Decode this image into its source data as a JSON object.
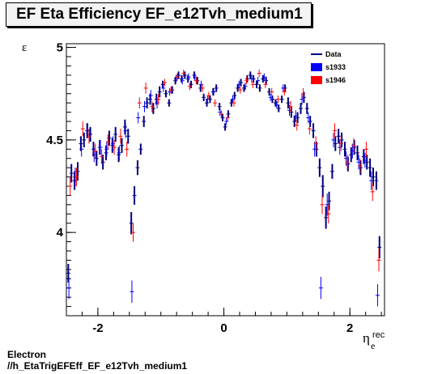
{
  "title": "EF Eta Efficiency EF_e12Tvh_medium1",
  "footer": {
    "line1": "Electron",
    "line2": "//h_EtaTrigEFEff_EF_e12Tvh_medium1"
  },
  "chart_data": {
    "type": "scatter",
    "title": "EF Eta Efficiency EF_e12Tvh_medium1",
    "ylabel": "ε",
    "xlabel": "η",
    "xlabel_sup": "rec",
    "xlabel_sub": "e",
    "xlim": [
      -2.5,
      2.55
    ],
    "ylim": [
      3.55,
      5.02
    ],
    "xticks": [
      -2,
      0,
      2
    ],
    "yticks": [
      4,
      4.5,
      5
    ],
    "grid": false,
    "legend_position": "top-right",
    "legend": [
      {
        "label": "Data",
        "style": "line",
        "color": "#00007f"
      },
      {
        "label": "s1933",
        "style": "box",
        "color": "#0000ff"
      },
      {
        "label": "s1946",
        "style": "box",
        "color": "#ff0000"
      }
    ],
    "series": [
      {
        "name": "Data",
        "color": "#00007f",
        "x": [
          -2.47,
          -2.42,
          -2.37,
          -2.32,
          -2.27,
          -2.22,
          -2.17,
          -2.12,
          -2.07,
          -2.02,
          -1.97,
          -1.92,
          -1.87,
          -1.82,
          -1.77,
          -1.72,
          -1.67,
          -1.62,
          -1.57,
          -1.52,
          -1.47,
          -1.42,
          -1.37,
          -1.32,
          -1.27,
          -1.22,
          -1.17,
          -1.12,
          -1.07,
          -1.02,
          -0.97,
          -0.92,
          -0.87,
          -0.82,
          -0.77,
          -0.72,
          -0.67,
          -0.62,
          -0.57,
          -0.52,
          -0.47,
          -0.42,
          -0.37,
          -0.32,
          -0.27,
          -0.22,
          -0.17,
          -0.12,
          -0.07,
          -0.02,
          0.02,
          0.07,
          0.12,
          0.17,
          0.22,
          0.27,
          0.32,
          0.37,
          0.42,
          0.47,
          0.52,
          0.57,
          0.62,
          0.67,
          0.72,
          0.77,
          0.82,
          0.87,
          0.92,
          0.97,
          1.02,
          1.07,
          1.12,
          1.17,
          1.22,
          1.27,
          1.32,
          1.37,
          1.42,
          1.47,
          1.52,
          1.57,
          1.62,
          1.67,
          1.72,
          1.77,
          1.82,
          1.87,
          1.92,
          1.97,
          2.02,
          2.07,
          2.12,
          2.17,
          2.22,
          2.27,
          2.32,
          2.37,
          2.42,
          2.47
        ],
        "y": [
          3.78,
          4.32,
          4.28,
          4.33,
          4.48,
          4.5,
          4.55,
          4.53,
          4.45,
          4.4,
          4.46,
          4.38,
          4.43,
          4.51,
          4.47,
          4.53,
          4.42,
          4.47,
          4.57,
          4.52,
          4.05,
          4.2,
          4.35,
          4.45,
          4.6,
          4.7,
          4.72,
          4.67,
          4.72,
          4.76,
          4.8,
          4.75,
          4.7,
          4.77,
          4.82,
          4.85,
          4.83,
          4.85,
          4.83,
          4.8,
          4.85,
          4.82,
          4.78,
          4.73,
          4.7,
          4.72,
          4.76,
          4.78,
          4.68,
          4.62,
          4.57,
          4.64,
          4.7,
          4.74,
          4.78,
          4.81,
          4.78,
          4.83,
          4.85,
          4.83,
          4.8,
          4.78,
          4.83,
          4.82,
          4.76,
          4.72,
          4.7,
          4.67,
          4.72,
          4.78,
          4.7,
          4.65,
          4.6,
          4.62,
          4.67,
          4.73,
          4.67,
          4.6,
          4.55,
          4.45,
          4.35,
          4.25,
          4.08,
          4.17,
          4.33,
          4.48,
          4.52,
          4.5,
          4.45,
          4.37,
          4.42,
          4.46,
          4.43,
          4.35,
          4.41,
          4.38,
          4.35,
          4.3,
          4.28,
          3.92
        ],
        "yerr": [
          0.05,
          0.05,
          0.05,
          0.05,
          0.04,
          0.04,
          0.04,
          0.04,
          0.04,
          0.04,
          0.04,
          0.04,
          0.04,
          0.04,
          0.04,
          0.04,
          0.04,
          0.04,
          0.04,
          0.04,
          0.06,
          0.05,
          0.04,
          0.03,
          0.03,
          0.03,
          0.03,
          0.03,
          0.03,
          0.03,
          0.02,
          0.02,
          0.02,
          0.02,
          0.02,
          0.02,
          0.02,
          0.02,
          0.02,
          0.02,
          0.02,
          0.02,
          0.02,
          0.02,
          0.02,
          0.02,
          0.02,
          0.02,
          0.02,
          0.02,
          0.02,
          0.02,
          0.02,
          0.02,
          0.02,
          0.02,
          0.02,
          0.02,
          0.02,
          0.02,
          0.02,
          0.02,
          0.02,
          0.02,
          0.02,
          0.02,
          0.02,
          0.02,
          0.02,
          0.02,
          0.03,
          0.03,
          0.03,
          0.03,
          0.03,
          0.03,
          0.03,
          0.03,
          0.04,
          0.04,
          0.05,
          0.06,
          0.06,
          0.05,
          0.04,
          0.04,
          0.04,
          0.04,
          0.04,
          0.04,
          0.04,
          0.04,
          0.04,
          0.04,
          0.04,
          0.04,
          0.05,
          0.05,
          0.05,
          0.06
        ]
      },
      {
        "name": "s1933",
        "color": "#0000ff",
        "x": [
          -2.46,
          -2.36,
          -2.26,
          -2.16,
          -2.06,
          -1.96,
          -1.86,
          -1.76,
          -1.66,
          -1.56,
          -1.46,
          -1.36,
          -1.26,
          -1.16,
          -1.06,
          -0.96,
          -0.86,
          -0.76,
          -0.66,
          -0.56,
          -0.46,
          -0.36,
          -0.26,
          -0.16,
          -0.06,
          0.04,
          0.14,
          0.24,
          0.34,
          0.44,
          0.54,
          0.64,
          0.74,
          0.84,
          0.94,
          1.04,
          1.14,
          1.24,
          1.34,
          1.44,
          1.54,
          1.64,
          1.74,
          1.84,
          1.94,
          2.04,
          2.14,
          2.24,
          2.34,
          2.44
        ],
        "y": [
          3.7,
          4.3,
          4.45,
          4.55,
          4.42,
          4.46,
          4.45,
          4.48,
          4.43,
          4.55,
          3.68,
          4.62,
          4.68,
          4.74,
          4.7,
          4.78,
          4.76,
          4.83,
          4.82,
          4.84,
          4.84,
          4.8,
          4.72,
          4.76,
          4.65,
          4.6,
          4.72,
          4.8,
          4.79,
          4.83,
          4.82,
          4.84,
          4.73,
          4.69,
          4.78,
          4.66,
          4.63,
          4.72,
          4.62,
          4.45,
          3.7,
          4.15,
          4.5,
          4.46,
          4.4,
          4.44,
          4.38,
          4.39,
          4.28,
          3.66
        ],
        "yerr": [
          0.06,
          0.05,
          0.04,
          0.04,
          0.04,
          0.04,
          0.04,
          0.04,
          0.04,
          0.04,
          0.06,
          0.03,
          0.03,
          0.03,
          0.03,
          0.02,
          0.02,
          0.02,
          0.02,
          0.02,
          0.02,
          0.02,
          0.02,
          0.02,
          0.02,
          0.02,
          0.02,
          0.02,
          0.02,
          0.02,
          0.02,
          0.02,
          0.02,
          0.02,
          0.02,
          0.03,
          0.03,
          0.03,
          0.03,
          0.04,
          0.06,
          0.06,
          0.04,
          0.04,
          0.04,
          0.04,
          0.04,
          0.04,
          0.05,
          0.06
        ]
      },
      {
        "name": "s1946",
        "color": "#ff0000",
        "x": [
          -2.44,
          -2.34,
          -2.24,
          -2.14,
          -2.04,
          -1.94,
          -1.84,
          -1.74,
          -1.64,
          -1.54,
          -1.44,
          -1.34,
          -1.24,
          -1.14,
          -1.04,
          -0.94,
          -0.84,
          -0.74,
          -0.64,
          -0.54,
          -0.44,
          -0.34,
          -0.24,
          -0.14,
          -0.04,
          0.06,
          0.16,
          0.26,
          0.36,
          0.46,
          0.56,
          0.66,
          0.76,
          0.86,
          0.96,
          1.06,
          1.16,
          1.26,
          1.36,
          1.46,
          1.56,
          1.66,
          1.76,
          1.86,
          1.96,
          2.06,
          2.16,
          2.26,
          2.36,
          2.46
        ],
        "y": [
          4.25,
          4.3,
          4.56,
          4.52,
          4.44,
          4.41,
          4.49,
          4.46,
          4.52,
          4.45,
          4.0,
          4.7,
          4.78,
          4.68,
          4.72,
          4.81,
          4.77,
          4.84,
          4.86,
          4.79,
          4.82,
          4.78,
          4.74,
          4.7,
          4.64,
          4.62,
          4.7,
          4.77,
          4.82,
          4.8,
          4.86,
          4.8,
          4.76,
          4.72,
          4.76,
          4.68,
          4.58,
          4.75,
          4.56,
          4.48,
          4.15,
          4.1,
          4.55,
          4.48,
          4.38,
          4.47,
          4.36,
          4.45,
          4.22,
          3.85
        ],
        "yerr": [
          0.05,
          0.05,
          0.04,
          0.04,
          0.04,
          0.04,
          0.04,
          0.04,
          0.04,
          0.04,
          0.05,
          0.03,
          0.03,
          0.03,
          0.03,
          0.02,
          0.02,
          0.02,
          0.02,
          0.02,
          0.02,
          0.02,
          0.02,
          0.02,
          0.02,
          0.02,
          0.02,
          0.02,
          0.02,
          0.02,
          0.02,
          0.02,
          0.02,
          0.02,
          0.02,
          0.03,
          0.03,
          0.03,
          0.03,
          0.04,
          0.05,
          0.05,
          0.04,
          0.04,
          0.04,
          0.04,
          0.04,
          0.04,
          0.05,
          0.06
        ]
      }
    ]
  }
}
